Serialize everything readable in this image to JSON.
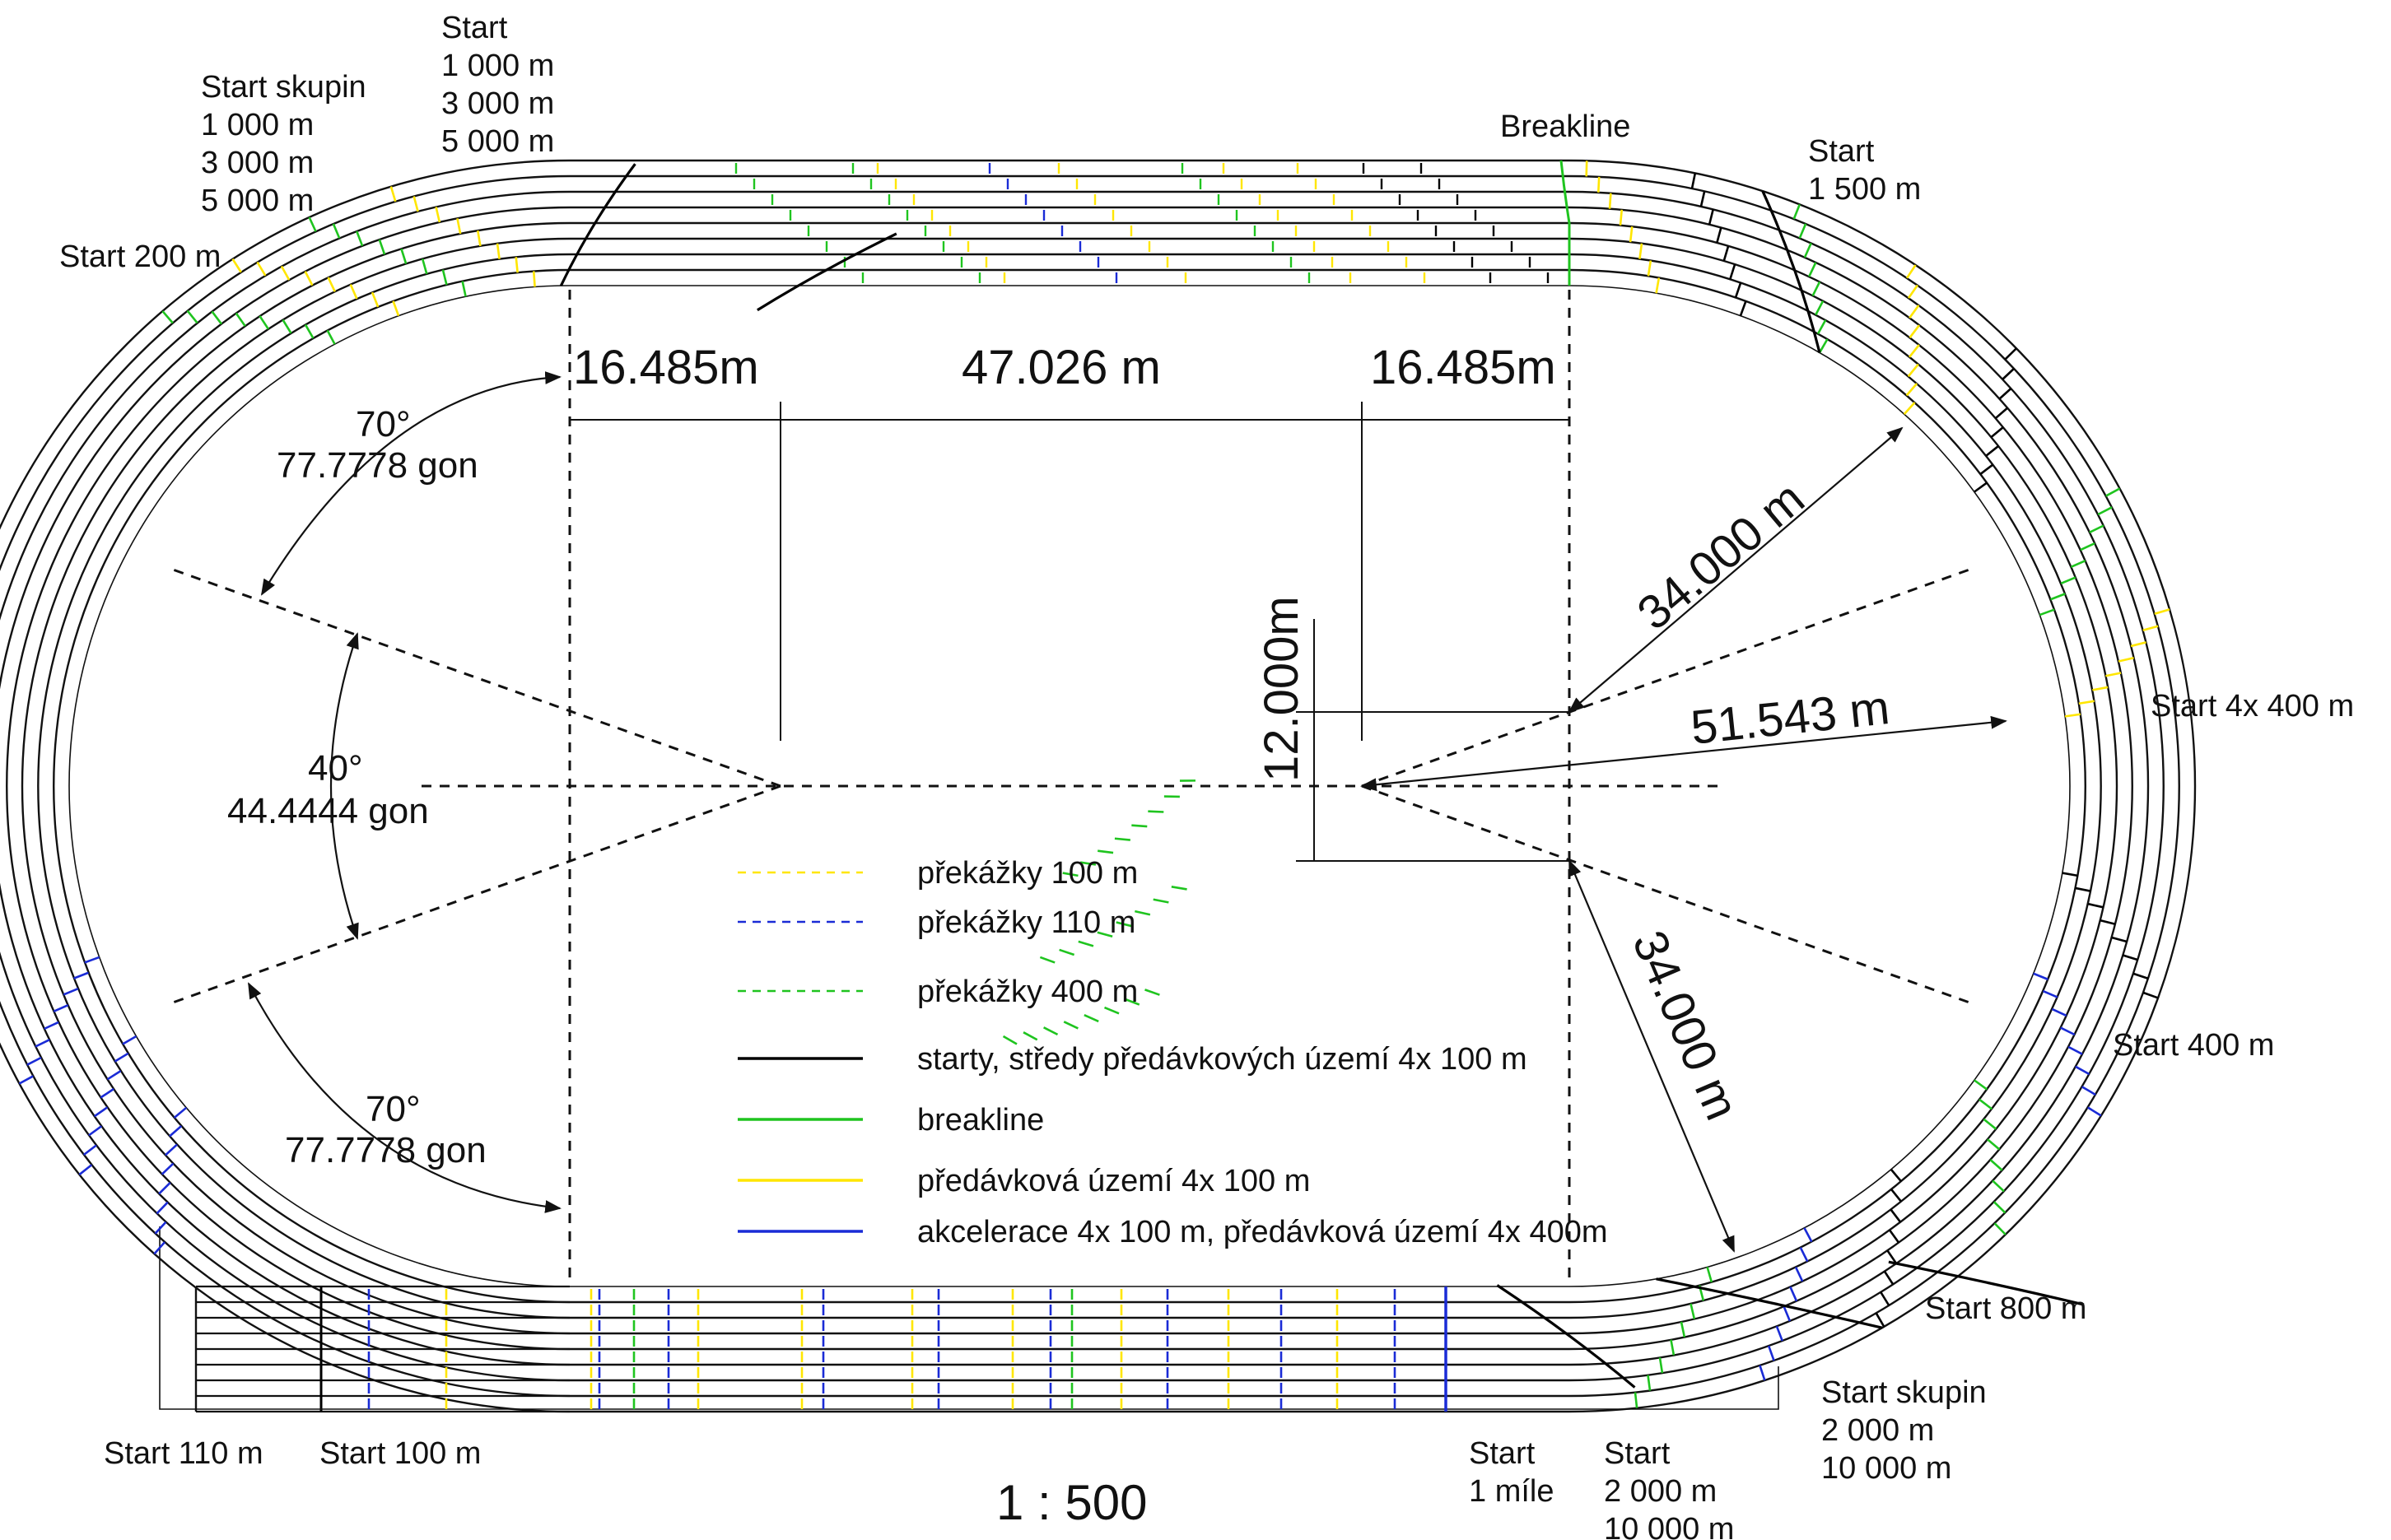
{
  "colors": {
    "track": "#111111",
    "yellow": "#ffe600",
    "blue": "#1a2bd6",
    "green": "#1fc41f",
    "black": "#000000"
  },
  "labels": {
    "start_skupin_top": [
      "Start skupin",
      "1 000 m",
      "3 000 m",
      "5 000 m"
    ],
    "start_top": [
      "Start",
      "1 000 m",
      "3 000 m",
      "5 000 m"
    ],
    "breakline_top": "Breakline",
    "start_1500": [
      "Start",
      "1 500 m"
    ],
    "start_200": "Start 200 m",
    "start_4x400": "Start 4x 400 m",
    "start_400": "Start 400 m",
    "start_800": "Start 800 m",
    "start_skupin_bottom": [
      "Start skupin",
      "2 000 m",
      "10 000 m"
    ],
    "start_110": "Start 110 m",
    "start_100": "Start 100 m",
    "start_mile": [
      "Start",
      "1 míle"
    ],
    "start_2000": [
      "Start",
      "2 000 m",
      "10 000 m"
    ]
  },
  "dimensions": {
    "left_bend_length": "16.485m",
    "straight_length": "47.026 m",
    "right_bend_length": "16.485m",
    "offset": "12.000m",
    "radius_upper": "34.000 m",
    "radius_mid": "51.543 m",
    "radius_lower": "34.000 m",
    "angle_top_deg": "70°",
    "angle_top_gon": "77.7778 gon",
    "angle_mid_deg": "40°",
    "angle_mid_gon": "44.4444 gon",
    "angle_bottom_deg": "70°",
    "angle_bottom_gon": "77.7778 gon"
  },
  "legend": [
    {
      "label": "překážky 100 m",
      "color": "#ffe600",
      "style": "dashed"
    },
    {
      "label": "překážky 110 m",
      "color": "#1a2bd6",
      "style": "dashed"
    },
    {
      "label": "překážky 400 m",
      "color": "#1fc41f",
      "style": "dashed"
    },
    {
      "label": "starty, středy předávkových území 4x 100 m",
      "color": "#000000",
      "style": "solid"
    },
    {
      "label": "breakline",
      "color": "#1fc41f",
      "style": "solid"
    },
    {
      "label": "předávková území 4x 100 m",
      "color": "#ffe600",
      "style": "solid"
    },
    {
      "label": "akcelerace 4x 100 m, předávková území 4x 400m",
      "color": "#1a2bd6",
      "style": "solid"
    }
  ],
  "scale": "1 : 500"
}
